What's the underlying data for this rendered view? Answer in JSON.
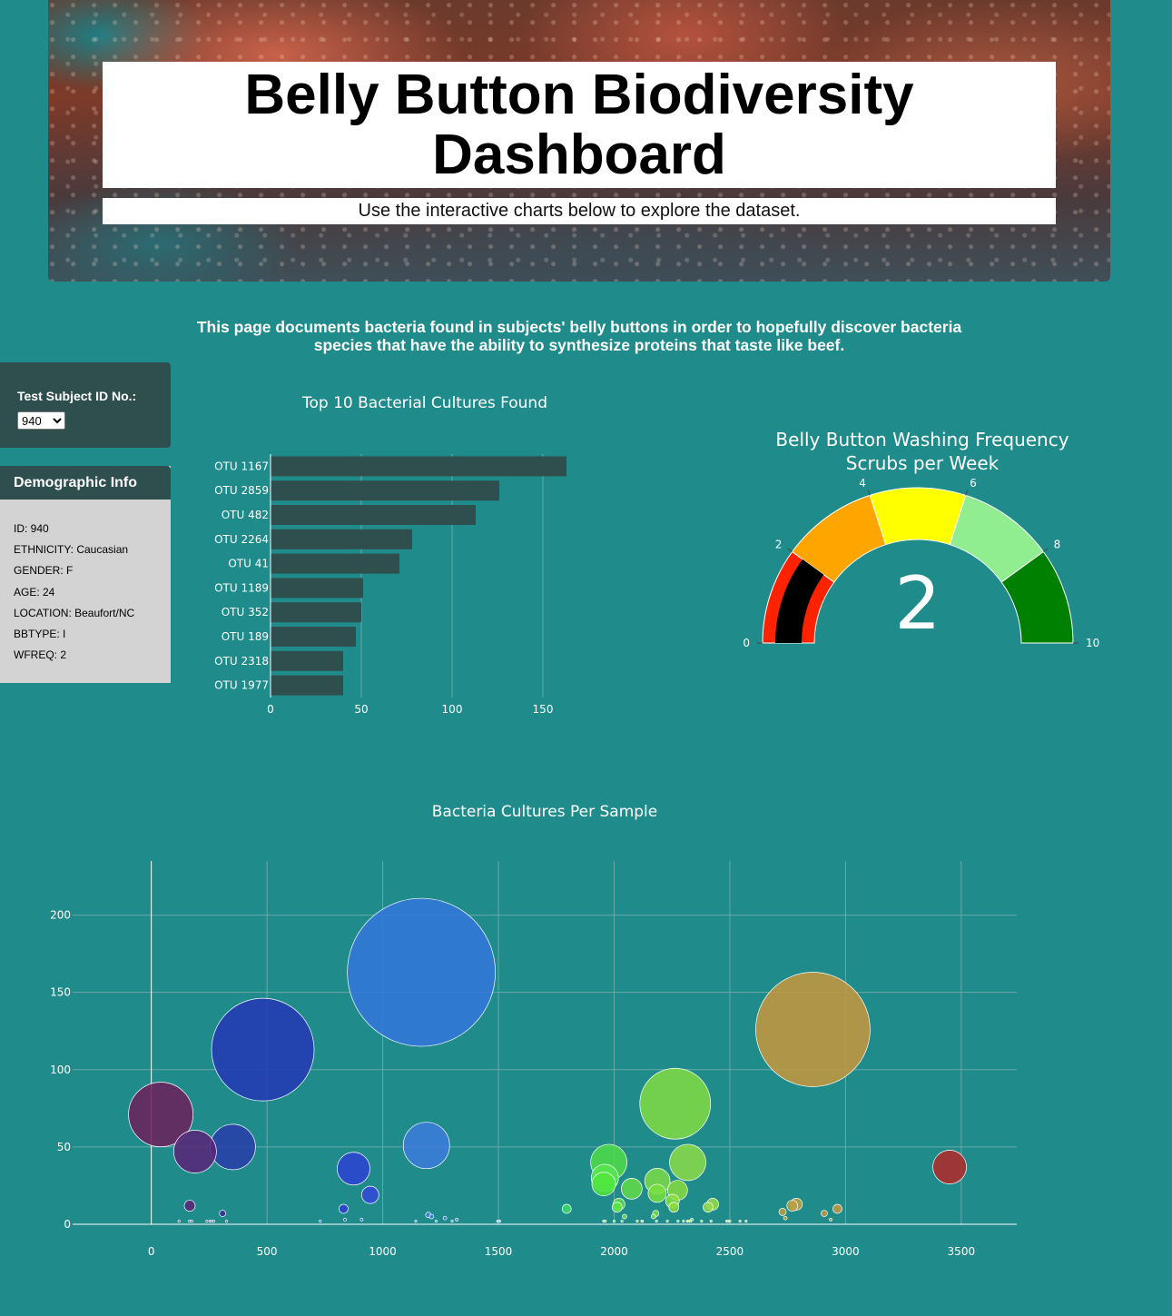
{
  "header": {
    "title": "Belly Button Biodiversity Dashboard",
    "subtitle": "Use the interactive charts below to explore the dataset."
  },
  "intro": "This page documents bacteria found in subjects' belly buttons in order to hopefully discover bacteria species that have the ability to synthesize proteins that taste like beef.",
  "selector": {
    "label": "Test Subject ID No.:",
    "selected": "940"
  },
  "demographics": {
    "heading": "Demographic Info",
    "rows": [
      "ID: 940",
      "ETHNICITY: Caucasian",
      "GENDER: F",
      "AGE: 24",
      "LOCATION: Beaufort/NC",
      "BBTYPE: I",
      "WFREQ: 2"
    ]
  },
  "colors": {
    "bar": "#2f4f4f",
    "page_bg": "#1f8b8a"
  },
  "chart_data": [
    {
      "type": "bar",
      "orientation": "horizontal",
      "title": "Top 10 Bacterial Cultures Found",
      "categories": [
        "OTU 1167",
        "OTU 2859",
        "OTU 482",
        "OTU 2264",
        "OTU 41",
        "OTU 1189",
        "OTU 352",
        "OTU 189",
        "OTU 2318",
        "OTU 1977"
      ],
      "values": [
        163,
        126,
        113,
        78,
        71,
        51,
        50,
        47,
        40,
        40
      ],
      "xticks": [
        0,
        50,
        100,
        150
      ],
      "xlim": [
        0,
        165
      ]
    },
    {
      "type": "gauge",
      "title": "Belly Button Washing Frequency",
      "subtitle": "Scrubs per Week",
      "value": 2,
      "range": [
        0,
        10
      ],
      "ticks": [
        0,
        2,
        4,
        6,
        8,
        10
      ],
      "steps": [
        {
          "range": [
            0,
            2
          ],
          "color": "#ff2200"
        },
        {
          "range": [
            2,
            4
          ],
          "color": "#ffa500"
        },
        {
          "range": [
            4,
            6
          ],
          "color": "#ffff00"
        },
        {
          "range": [
            6,
            8
          ],
          "color": "#90ee90"
        },
        {
          "range": [
            8,
            10
          ],
          "color": "#008000"
        }
      ],
      "bar_color": "#000000"
    },
    {
      "type": "scatter",
      "mode": "bubble",
      "title": "Bacteria Cultures Per Sample",
      "xlim": [
        -340,
        3740
      ],
      "ylim": [
        0,
        235
      ],
      "xticks": [
        0,
        500,
        1000,
        1500,
        2000,
        2500,
        3000,
        3500
      ],
      "yticks": [
        0,
        50,
        100,
        150,
        200
      ],
      "points": [
        {
          "x": 1167,
          "y": 163,
          "color": "#3276dc"
        },
        {
          "x": 2859,
          "y": 126,
          "color": "#c8963c"
        },
        {
          "x": 482,
          "y": 113,
          "color": "#2536b4"
        },
        {
          "x": 2264,
          "y": 78,
          "color": "#82dc41"
        },
        {
          "x": 41,
          "y": 71,
          "color": "#6e1e5a"
        },
        {
          "x": 1189,
          "y": 51,
          "color": "#3c7adc"
        },
        {
          "x": 352,
          "y": 50,
          "color": "#2a3caa"
        },
        {
          "x": 189,
          "y": 47,
          "color": "#5a2378"
        },
        {
          "x": 2318,
          "y": 40,
          "color": "#8cdc46"
        },
        {
          "x": 1977,
          "y": 40,
          "color": "#50dc46"
        },
        {
          "x": 3450,
          "y": 37,
          "color": "#b42828"
        },
        {
          "x": 874,
          "y": 36,
          "color": "#2d41d2"
        },
        {
          "x": 1960,
          "y": 30,
          "color": "#58e650"
        },
        {
          "x": 1955,
          "y": 26,
          "color": "#50e63c"
        },
        {
          "x": 2187,
          "y": 28,
          "color": "#7ddc46"
        },
        {
          "x": 2076,
          "y": 23,
          "color": "#64dc46"
        },
        {
          "x": 2274,
          "y": 22,
          "color": "#87dc3c"
        },
        {
          "x": 946,
          "y": 19,
          "color": "#3246dc"
        },
        {
          "x": 2186,
          "y": 20,
          "color": "#78e03c"
        },
        {
          "x": 2426,
          "y": 13,
          "color": "#96dc46"
        },
        {
          "x": 2252,
          "y": 15,
          "color": "#8ce03c"
        },
        {
          "x": 2788,
          "y": 13,
          "color": "#c0a040"
        },
        {
          "x": 2021,
          "y": 13,
          "color": "#60dc46"
        },
        {
          "x": 166,
          "y": 12,
          "color": "#5a2378"
        },
        {
          "x": 2258,
          "y": 11,
          "color": "#8cdc3c"
        },
        {
          "x": 2770,
          "y": 12,
          "color": "#bca03c"
        },
        {
          "x": 2406,
          "y": 11,
          "color": "#94dc46"
        },
        {
          "x": 1795,
          "y": 10,
          "color": "#3cdc64"
        },
        {
          "x": 2013,
          "y": 11,
          "color": "#5ae646"
        },
        {
          "x": 2965,
          "y": 10,
          "color": "#c89640"
        },
        {
          "x": 831,
          "y": 10,
          "color": "#2d3cd2"
        },
        {
          "x": 2728,
          "y": 8,
          "color": "#bc9c3c"
        },
        {
          "x": 2908,
          "y": 7,
          "color": "#c09640"
        },
        {
          "x": 308,
          "y": 7,
          "color": "#3c2896"
        },
        {
          "x": 2180,
          "y": 7,
          "color": "#78dc46"
        },
        {
          "x": 1197,
          "y": 6,
          "color": "#3c7adc"
        },
        {
          "x": 1211,
          "y": 5,
          "color": "#3c7adc"
        },
        {
          "x": 2045,
          "y": 5,
          "color": "#64dc46"
        },
        {
          "x": 2170,
          "y": 5,
          "color": "#78dc46"
        },
        {
          "x": 2740,
          "y": 4,
          "color": "#bc9c3c"
        },
        {
          "x": 1269,
          "y": 4,
          "color": "#3c7ad2"
        },
        {
          "x": 1320,
          "y": 3,
          "color": "#3c80d2"
        },
        {
          "x": 837,
          "y": 3,
          "color": "#2d3cd2"
        },
        {
          "x": 909,
          "y": 3,
          "color": "#3241d2"
        },
        {
          "x": 2936,
          "y": 3,
          "color": "#c09640"
        },
        {
          "x": 2336,
          "y": 3,
          "color": "#8cdc3c"
        },
        {
          "x": 1962,
          "y": 2,
          "color": "#50dc46"
        },
        {
          "x": 2317,
          "y": 2,
          "color": "#8cdc3c"
        },
        {
          "x": 2183,
          "y": 2,
          "color": "#78dc46"
        },
        {
          "x": 1143,
          "y": 2,
          "color": "#3270d2"
        },
        {
          "x": 1501,
          "y": 2,
          "color": "#3c9ad2"
        },
        {
          "x": 1497,
          "y": 2,
          "color": "#3c9ad2"
        },
        {
          "x": 2100,
          "y": 2,
          "color": "#6edc46"
        },
        {
          "x": 2122,
          "y": 2,
          "color": "#6edc46"
        },
        {
          "x": 2419,
          "y": 2,
          "color": "#94dc46"
        },
        {
          "x": 2487,
          "y": 2,
          "color": "#9adc46"
        },
        {
          "x": 2570,
          "y": 2,
          "color": "#a6d240"
        },
        {
          "x": 1231,
          "y": 2,
          "color": "#3c7ad2"
        },
        {
          "x": 2491,
          "y": 2,
          "color": "#9adc46"
        },
        {
          "x": 2276,
          "y": 2,
          "color": "#87dc3c"
        },
        {
          "x": 2034,
          "y": 2,
          "color": "#60dc46"
        },
        {
          "x": 2544,
          "y": 2,
          "color": "#a0d240"
        },
        {
          "x": 730,
          "y": 2,
          "color": "#2836c8"
        },
        {
          "x": 2378,
          "y": 2,
          "color": "#90dc46"
        },
        {
          "x": 2323,
          "y": 2,
          "color": "#8cdc3c"
        },
        {
          "x": 1955,
          "y": 2,
          "color": "#50dc46"
        },
        {
          "x": 2230,
          "y": 2,
          "color": "#80dc46"
        },
        {
          "x": 255,
          "y": 2,
          "color": "#462896"
        },
        {
          "x": 240,
          "y": 2,
          "color": "#462896"
        },
        {
          "x": 2500,
          "y": 2,
          "color": "#9adc46"
        },
        {
          "x": 1300,
          "y": 2,
          "color": "#3c80d2"
        },
        {
          "x": 2300,
          "y": 2,
          "color": "#8cdc3c"
        },
        {
          "x": 165,
          "y": 2,
          "color": "#5a2378"
        },
        {
          "x": 120,
          "y": 2,
          "color": "#5a2378"
        },
        {
          "x": 1960,
          "y": 2,
          "color": "#50dc46"
        },
        {
          "x": 175,
          "y": 2,
          "color": "#5a2378"
        },
        {
          "x": 2120,
          "y": 2,
          "color": "#6edc46"
        },
        {
          "x": 2000,
          "y": 2,
          "color": "#5adc46"
        },
        {
          "x": 1505,
          "y": 2,
          "color": "#3c9ad2"
        },
        {
          "x": 1500,
          "y": 2,
          "color": "#3c9ad2"
        },
        {
          "x": 258,
          "y": 2,
          "color": "#462896"
        },
        {
          "x": 270,
          "y": 2,
          "color": "#462896"
        },
        {
          "x": 325,
          "y": 2,
          "color": "#3c2896"
        },
        {
          "x": 2330,
          "y": 2,
          "color": "#8cdc3c"
        }
      ]
    }
  ]
}
